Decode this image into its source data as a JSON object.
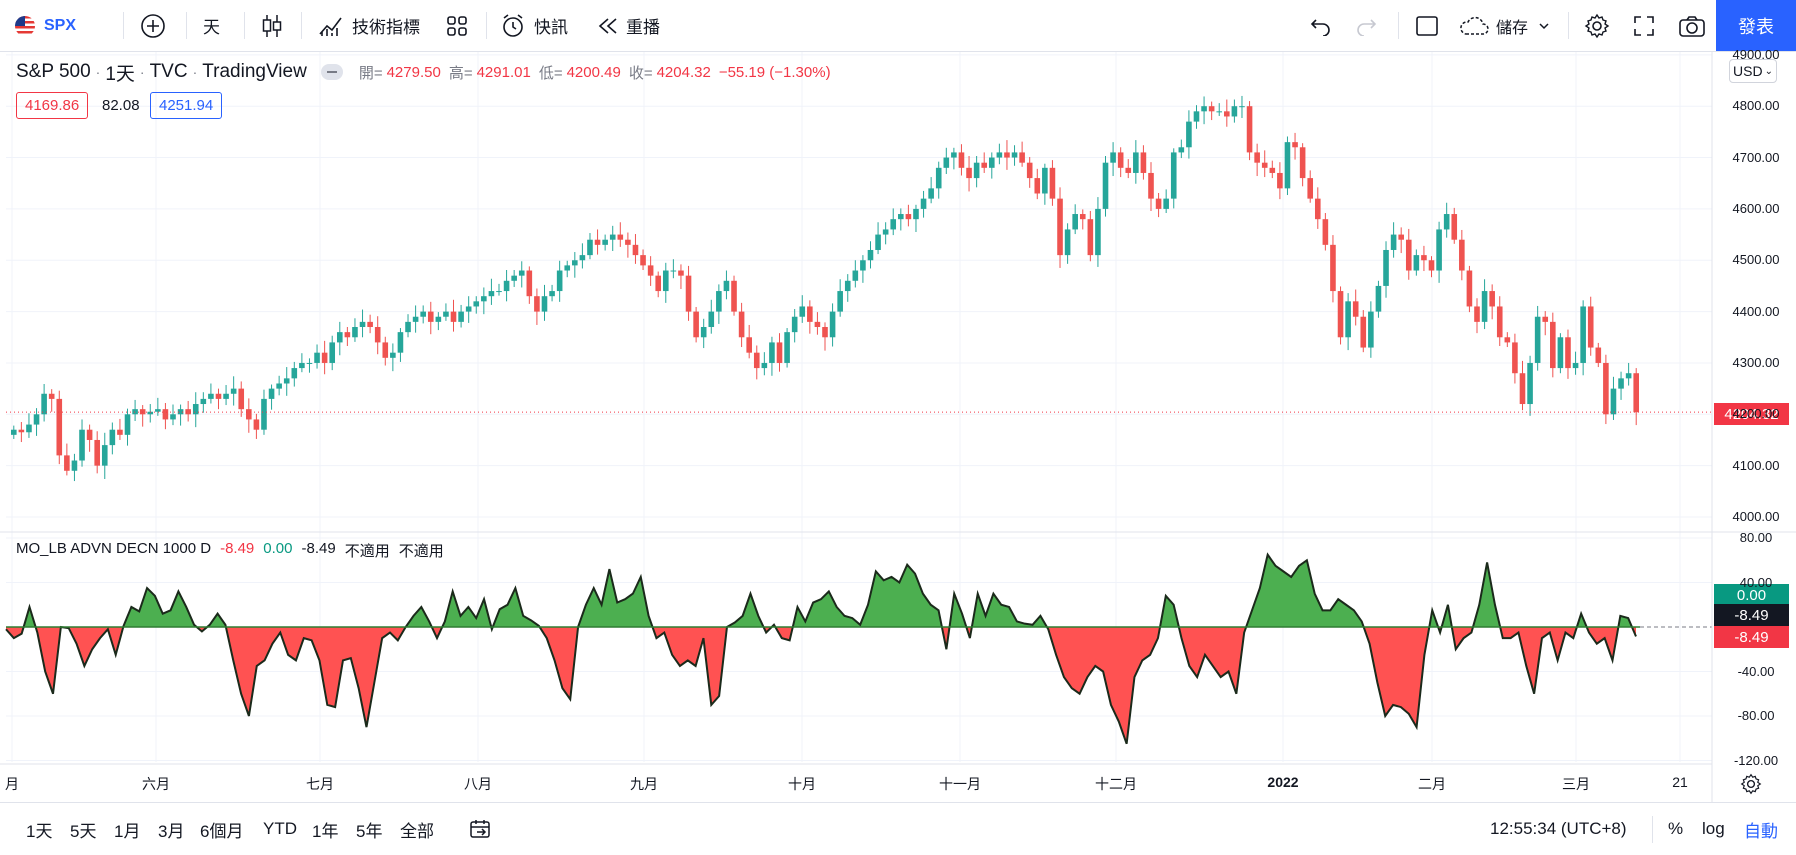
{
  "topbar": {
    "symbol": "SPX",
    "interval": "天",
    "indicators_label": "技術指標",
    "alert_label": "快訊",
    "replay_label": "重播",
    "save_label": "儲存",
    "publish_label": "發表"
  },
  "legend": {
    "symbol_name": "S&P 500",
    "interval": "1天",
    "exchange": "TVC",
    "source": "TradingView",
    "open_label": "開=",
    "open_value": "4279.50",
    "high_label": "高=",
    "high_value": "4291.01",
    "low_label": "低=",
    "low_value": "4200.49",
    "close_label": "收=",
    "close_value": "4204.32",
    "change": "−55.19 (−1.30%)",
    "bid": "4169.86",
    "spread": "82.08",
    "ask": "4251.94"
  },
  "indicator": {
    "name": "MO_LB ADVN DECN 1000 D",
    "v1": "-8.49",
    "v2": "0.00",
    "v3": "-8.49",
    "na1": "不適用",
    "na2": "不適用"
  },
  "price_axis": {
    "currency": "USD",
    "labels": [
      "4900.00",
      "4800.00",
      "4700.00",
      "4600.00",
      "4500.00",
      "4400.00",
      "4300.00",
      "4200.00",
      "4100.00",
      "4000.00"
    ],
    "last_price": "4204.32"
  },
  "osc_axis": {
    "labels": [
      "80.00",
      "40.00",
      "-40.00",
      "-80.00",
      "-120.00"
    ],
    "tag_zero": "0.00",
    "tag_last": "-8.49",
    "tag_last2": "-8.49"
  },
  "time_axis": {
    "labels": [
      "月",
      "六月",
      "七月",
      "八月",
      "九月",
      "十月",
      "十一月",
      "十二月",
      "2022",
      "二月",
      "三月",
      "21"
    ]
  },
  "bottombar": {
    "ranges": [
      "1天",
      "5天",
      "1月",
      "3月",
      "6個月",
      "YTD",
      "1年",
      "5年",
      "全部"
    ],
    "clock": "12:55:34 (UTC+8)",
    "percent": "%",
    "log": "log",
    "auto": "自動"
  },
  "colors": {
    "up": "#26a69a",
    "down": "#ef5350",
    "osc_pos": "#4caf50",
    "osc_neg": "#ff5252",
    "accent": "#2962ff"
  },
  "chart_data": {
    "type": "candlestick",
    "title": "S&P 500 · 1天 · TVC · TradingView",
    "ylim": [
      3960,
      4920
    ],
    "closes": [
      4170,
      4165,
      4180,
      4200,
      4240,
      4230,
      4120,
      4090,
      4110,
      4170,
      4150,
      4100,
      4140,
      4170,
      4160,
      4200,
      4210,
      4200,
      4205,
      4210,
      4190,
      4200,
      4210,
      4200,
      4220,
      4230,
      4240,
      4230,
      4240,
      4250,
      4210,
      4190,
      4170,
      4230,
      4250,
      4260,
      4270,
      4290,
      4300,
      4300,
      4320,
      4300,
      4340,
      4360,
      4350,
      4370,
      4380,
      4370,
      4340,
      4310,
      4320,
      4360,
      4380,
      4390,
      4400,
      4380,
      4390,
      4400,
      4380,
      4400,
      4410,
      4420,
      4430,
      4440,
      4440,
      4460,
      4470,
      4480,
      4430,
      4400,
      4430,
      4440,
      4480,
      4490,
      4500,
      4510,
      4540,
      4530,
      4540,
      4550,
      4540,
      4530,
      4510,
      4490,
      4470,
      4440,
      4480,
      4480,
      4470,
      4400,
      4350,
      4370,
      4400,
      4440,
      4460,
      4400,
      4350,
      4320,
      4290,
      4300,
      4340,
      4300,
      4360,
      4390,
      4410,
      4380,
      4370,
      4350,
      4400,
      4440,
      4460,
      4480,
      4500,
      4520,
      4550,
      4560,
      4580,
      4590,
      4580,
      4600,
      4620,
      4640,
      4680,
      4700,
      4710,
      4680,
      4660,
      4690,
      4680,
      4700,
      4710,
      4700,
      4710,
      4690,
      4660,
      4630,
      4680,
      4620,
      4510,
      4560,
      4590,
      4580,
      4510,
      4600,
      4690,
      4710,
      4680,
      4670,
      4710,
      4670,
      4620,
      4600,
      4620,
      4710,
      4720,
      4770,
      4790,
      4800,
      4790,
      4790,
      4780,
      4800,
      4800,
      4710,
      4690,
      4680,
      4670,
      4640,
      4730,
      4720,
      4660,
      4620,
      4580,
      4530,
      4440,
      4350,
      4420,
      4390,
      4330,
      4400,
      4450,
      4520,
      4550,
      4540,
      4480,
      4510,
      4500,
      4480,
      4560,
      4590,
      4540,
      4480,
      4410,
      4380,
      4440,
      4410,
      4350,
      4340,
      4280,
      4220,
      4300,
      4390,
      4380,
      4290,
      4350,
      4290,
      4300,
      4410,
      4330,
      4300,
      4200,
      4250,
      4270,
      4280,
      4204
    ]
  },
  "osc_data": {
    "ylim": [
      -125,
      90
    ],
    "values": [
      -2,
      -10,
      -6,
      18,
      -5,
      -40,
      -60,
      0,
      -1,
      -15,
      -35,
      -20,
      -10,
      -2,
      -25,
      1,
      18,
      14,
      35,
      28,
      12,
      15,
      32,
      18,
      2,
      -4,
      2,
      12,
      2,
      -30,
      -60,
      -80,
      -35,
      -30,
      -15,
      -5,
      -25,
      -30,
      -10,
      -12,
      -30,
      -70,
      -72,
      -30,
      -28,
      -55,
      -90,
      -50,
      -10,
      -5,
      -12,
      0,
      10,
      18,
      5,
      -10,
      5,
      32,
      10,
      18,
      8,
      25,
      -2,
      16,
      20,
      35,
      10,
      6,
      1,
      -10,
      -30,
      -55,
      -65,
      0,
      20,
      35,
      20,
      52,
      22,
      25,
      30,
      45,
      10,
      -10,
      -5,
      -25,
      -35,
      -30,
      -35,
      -10,
      -70,
      -62,
      0,
      4,
      10,
      30,
      10,
      -5,
      2,
      -10,
      -12,
      18,
      5,
      22,
      25,
      32,
      18,
      10,
      8,
      2,
      20,
      50,
      42,
      45,
      40,
      56,
      48,
      30,
      20,
      15,
      -20,
      30,
      12,
      -10,
      30,
      10,
      30,
      20,
      18,
      5,
      3,
      2,
      10,
      -2,
      -25,
      -45,
      -55,
      -60,
      -45,
      -35,
      -40,
      -70,
      -85,
      -105,
      -45,
      -30,
      -25,
      -10,
      28,
      20,
      -10,
      -35,
      -45,
      -25,
      -35,
      -45,
      -40,
      -60,
      -5,
      15,
      35,
      65,
      55,
      50,
      45,
      55,
      60,
      30,
      15,
      15,
      25,
      20,
      15,
      5,
      -15,
      -50,
      -80,
      -70,
      -72,
      -78,
      -90,
      -25,
      15,
      -5,
      20,
      -20,
      -10,
      -5,
      20,
      58,
      20,
      -10,
      -10,
      -5,
      -35,
      -60,
      -10,
      -5,
      -30,
      -5,
      -10,
      12,
      -5,
      -15,
      -10,
      -30,
      10,
      8,
      -8.49
    ]
  }
}
